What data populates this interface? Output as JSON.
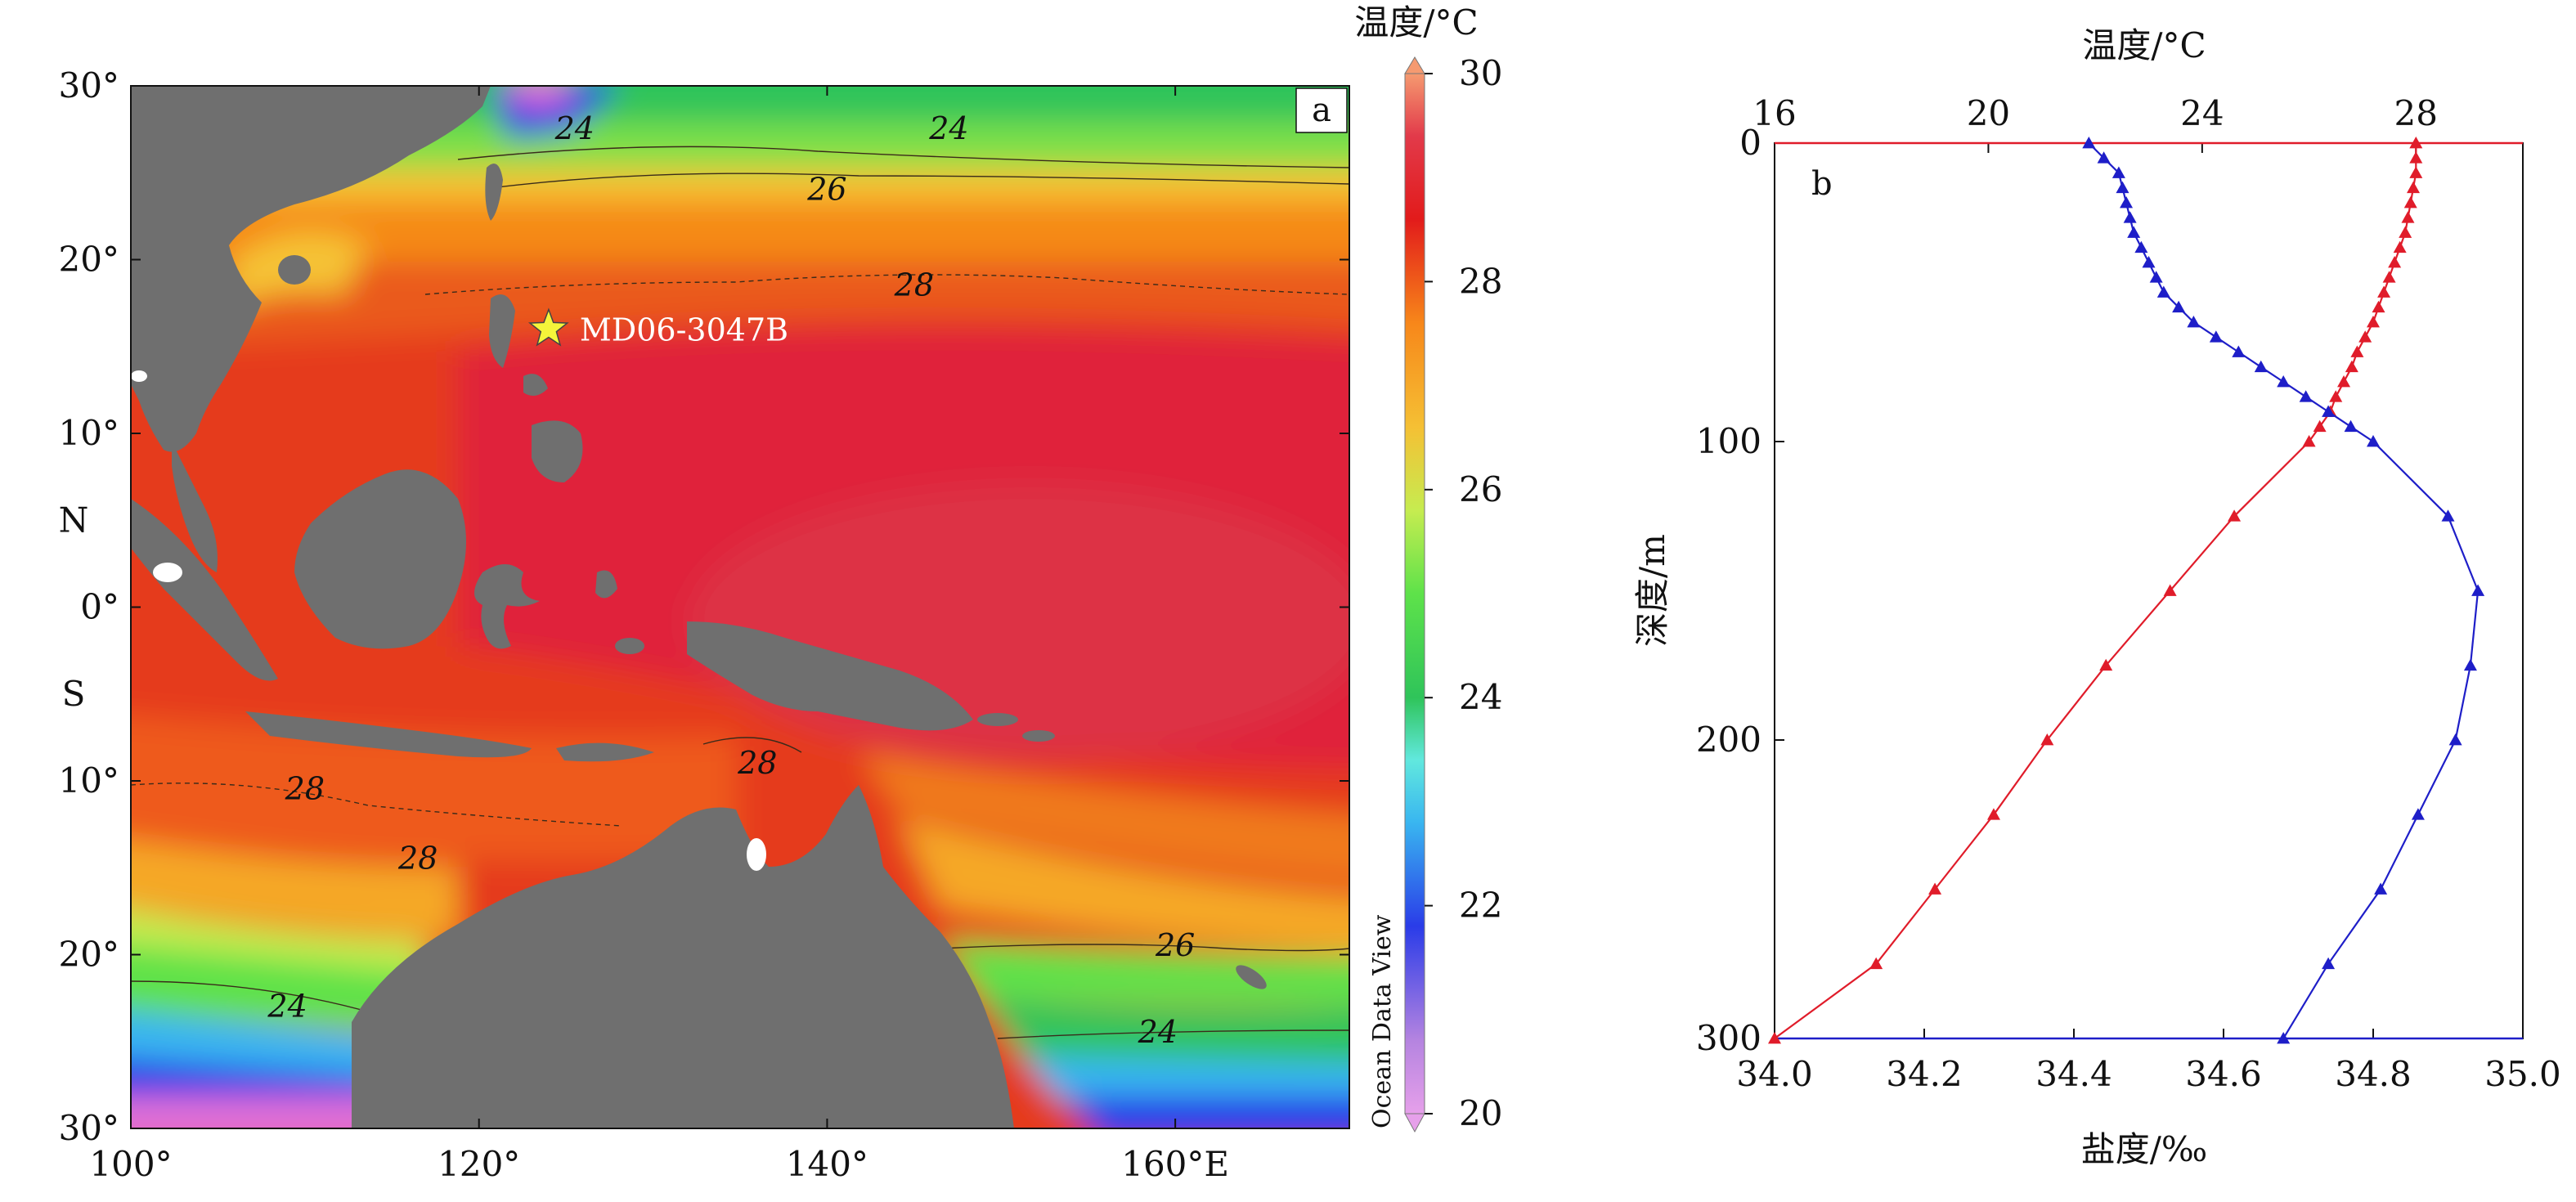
{
  "panel_a": {
    "label": "a",
    "colorbar": {
      "title": "温度/°C",
      "ticks": [
        30,
        28,
        26,
        24,
        22,
        20
      ],
      "range": [
        20,
        30
      ],
      "watermark": "Ocean Data View",
      "colors": [
        "#ec6fd8",
        "#b184e0",
        "#2a3ce8",
        "#39b6f0",
        "#61e8de",
        "#2fc45a",
        "#5ee24a",
        "#c6ec50",
        "#f5c034",
        "#f7871a",
        "#e85a22",
        "#e21b1b",
        "#f27a55"
      ]
    },
    "map": {
      "lon_ticks": [
        "100°",
        "120°",
        "140°",
        "160°E"
      ],
      "lon_values": [
        100,
        120,
        140,
        160
      ],
      "lat_ticks": [
        "30°",
        "20°",
        "10°",
        "0°",
        "10°",
        "20°",
        "30°"
      ],
      "lat_values": [
        30,
        20,
        10,
        0,
        -10,
        -20,
        -30
      ],
      "lat_hemi": {
        "north": "N",
        "south": "S"
      },
      "lon_range": [
        100,
        170
      ],
      "lat_range": [
        -30,
        30
      ],
      "station": {
        "name": "MD06-3047B",
        "lon": 124,
        "lat": 16
      },
      "contour_labels": [
        {
          "text": "24",
          "lon": 125.5,
          "lat": 27.5
        },
        {
          "text": "24",
          "lon": 147,
          "lat": 27.5
        },
        {
          "text": "26",
          "lon": 140,
          "lat": 24
        },
        {
          "text": "28",
          "lon": 145,
          "lat": 18.5
        },
        {
          "text": "28",
          "lon": 110,
          "lat": -10.5
        },
        {
          "text": "28",
          "lon": 116.5,
          "lat": -14.5
        },
        {
          "text": "28",
          "lon": 136,
          "lat": -9
        },
        {
          "text": "26",
          "lon": 160,
          "lat": -19.5
        },
        {
          "text": "24",
          "lon": 109,
          "lat": -23
        },
        {
          "text": "24",
          "lon": 159,
          "lat": -24.5
        }
      ],
      "colors": {
        "land": "#6f6f6f",
        "warm_pool": "#e0243a",
        "sea_28": "#e53a1f",
        "sea_27": "#f58a18",
        "sea_26": "#f5c335",
        "sea_25": "#7be04a",
        "sea_24": "#2fc25c",
        "sea_22": "#39b6f0",
        "sea_21": "#2a3ce8",
        "sea_20": "#e06fd6"
      }
    }
  },
  "panel_b": {
    "label": "b",
    "top_axis_title": "温度/°C",
    "top_ticks": [
      16,
      20,
      24,
      28
    ],
    "temp_range": [
      16,
      30
    ],
    "bottom_axis_title": "盐度/‰",
    "bottom_ticks": [
      "34.0",
      "34.2",
      "34.4",
      "34.6",
      "34.8",
      "35.0"
    ],
    "bottom_values": [
      34.0,
      34.2,
      34.4,
      34.6,
      34.8,
      35.0
    ],
    "salinity_range": [
      34.0,
      35.0
    ],
    "left_axis_title": "深度/m",
    "left_ticks": [
      0,
      100,
      200,
      300
    ],
    "depth_range": [
      0,
      300
    ],
    "chart_data": [
      {
        "type": "line",
        "name": "",
        "x_unit": "°C",
        "color": "#e01c2a",
        "depth": [
          0,
          5,
          10,
          15,
          20,
          25,
          30,
          35,
          40,
          45,
          50,
          55,
          60,
          65,
          70,
          75,
          80,
          85,
          90,
          95,
          100,
          125,
          150,
          175,
          200,
          225,
          250,
          275,
          300
        ],
        "x": [
          28.0,
          28.0,
          28.0,
          27.95,
          27.9,
          27.85,
          27.8,
          27.7,
          27.6,
          27.5,
          27.4,
          27.3,
          27.2,
          27.05,
          26.9,
          26.8,
          26.65,
          26.5,
          26.4,
          26.2,
          26.0,
          24.6,
          23.4,
          22.2,
          21.1,
          20.1,
          19.0,
          17.9,
          16.0
        ]
      },
      {
        "type": "line",
        "name": "",
        "x_unit": "‰",
        "color": "#1e1ec8",
        "depth": [
          0,
          5,
          10,
          15,
          20,
          25,
          30,
          35,
          40,
          45,
          50,
          55,
          60,
          65,
          70,
          75,
          80,
          85,
          90,
          95,
          100,
          125,
          150,
          175,
          200,
          225,
          250,
          275,
          300
        ],
        "x": [
          34.42,
          34.44,
          34.46,
          34.465,
          34.47,
          34.475,
          34.48,
          34.49,
          34.5,
          34.51,
          34.52,
          34.54,
          34.56,
          34.59,
          34.62,
          34.65,
          34.68,
          34.71,
          34.74,
          34.77,
          34.8,
          34.9,
          34.94,
          34.93,
          34.91,
          34.86,
          34.81,
          34.74,
          34.68
        ]
      }
    ]
  }
}
